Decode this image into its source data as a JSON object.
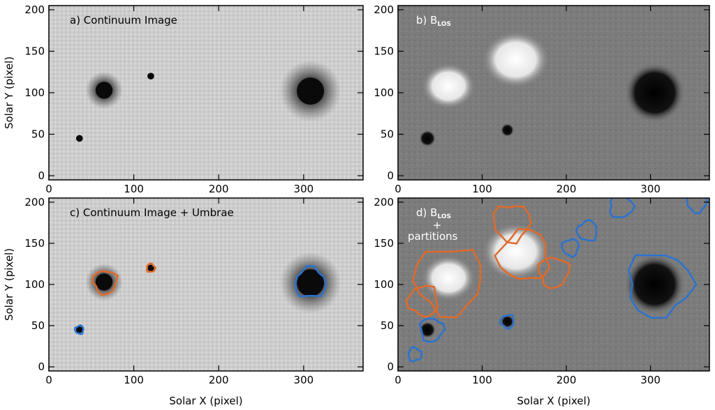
{
  "chart_data": [
    {
      "type": "image",
      "label": "a) Continuum Image",
      "xlabel": "",
      "ylabel": "Solar Y (pixel)",
      "xlim": [
        0,
        370
      ],
      "ylim": [
        -5,
        205
      ],
      "xticks": [
        0,
        100,
        200,
        300
      ],
      "yticks": [
        0,
        50,
        100,
        150,
        200
      ],
      "background": "#c9c9c9",
      "spots": [
        {
          "x": 65,
          "y": 103,
          "r_penumbra": 22,
          "r_umbra": 10
        },
        {
          "x": 308,
          "y": 102,
          "r_penumbra": 36,
          "r_umbra": 16
        },
        {
          "x": 36,
          "y": 45,
          "r_penumbra": 0,
          "r_umbra": 4
        },
        {
          "x": 120,
          "y": 120,
          "r_penumbra": 0,
          "r_umbra": 4
        }
      ]
    },
    {
      "type": "image",
      "label_prefix": "b) B",
      "label_sub": "LOS",
      "xlabel": "",
      "ylabel": "",
      "xlim": [
        0,
        370
      ],
      "ylim": [
        -5,
        205
      ],
      "xticks": [
        0,
        100,
        200,
        300
      ],
      "yticks": [
        0,
        50,
        100,
        150,
        200
      ],
      "background": "#7d7d7d",
      "positive_regions": [
        {
          "x": 60,
          "y": 108,
          "r": 32
        },
        {
          "x": 140,
          "y": 140,
          "r": 40
        }
      ],
      "negative_regions": [
        {
          "x": 305,
          "y": 100,
          "r": 36
        },
        {
          "x": 35,
          "y": 45,
          "r": 10
        },
        {
          "x": 130,
          "y": 55,
          "r": 8
        }
      ]
    },
    {
      "type": "image",
      "label": "c) Continuum Image + Umbrae",
      "xlabel": "Solar X (pixel)",
      "ylabel": "Solar Y (pixel)",
      "xlim": [
        0,
        370
      ],
      "ylim": [
        -5,
        205
      ],
      "xticks": [
        0,
        100,
        200,
        300
      ],
      "yticks": [
        0,
        50,
        100,
        150,
        200
      ],
      "background": "#c9c9c9",
      "contours": [
        {
          "color": "#e06a2a",
          "x": 66,
          "y": 103,
          "r": 14
        },
        {
          "color": "#e06a2a",
          "x": 120,
          "y": 120,
          "r": 5
        },
        {
          "color": "#2a72d0",
          "x": 36,
          "y": 45,
          "r": 5
        },
        {
          "color": "#2a72d0",
          "x": 308,
          "y": 102,
          "r": 18
        }
      ]
    },
    {
      "type": "image",
      "label_prefix": "d) B",
      "label_sub": "LOS",
      "label_line2": "+",
      "label_line3": "partitions",
      "xlabel": "Solar X (pixel)",
      "ylabel": "",
      "xlim": [
        0,
        370
      ],
      "ylim": [
        -5,
        205
      ],
      "xticks": [
        0,
        100,
        200,
        300
      ],
      "yticks": [
        0,
        50,
        100,
        150,
        200
      ],
      "background": "#7d7d7d",
      "contours": [
        {
          "color": "#e06a2a",
          "x": 60,
          "y": 105,
          "r": 40
        },
        {
          "color": "#e06a2a",
          "x": 135,
          "y": 175,
          "r": 22
        },
        {
          "color": "#e06a2a",
          "x": 150,
          "y": 135,
          "r": 30
        },
        {
          "color": "#e06a2a",
          "x": 185,
          "y": 115,
          "r": 18
        },
        {
          "color": "#e06a2a",
          "x": 30,
          "y": 80,
          "r": 18
        },
        {
          "color": "#2a72d0",
          "x": 310,
          "y": 100,
          "r": 38
        },
        {
          "color": "#2a72d0",
          "x": 40,
          "y": 45,
          "r": 14
        },
        {
          "color": "#2a72d0",
          "x": 20,
          "y": 15,
          "r": 8
        },
        {
          "color": "#2a72d0",
          "x": 130,
          "y": 55,
          "r": 8
        },
        {
          "color": "#2a72d0",
          "x": 205,
          "y": 145,
          "r": 10
        },
        {
          "color": "#2a72d0",
          "x": 225,
          "y": 165,
          "r": 12
        },
        {
          "color": "#2a72d0",
          "x": 265,
          "y": 195,
          "r": 14
        },
        {
          "color": "#2a72d0",
          "x": 355,
          "y": 200,
          "r": 12
        }
      ]
    }
  ],
  "colors": {
    "umbra_contour": "#2a72d0",
    "positive_contour": "#e06a2a"
  }
}
